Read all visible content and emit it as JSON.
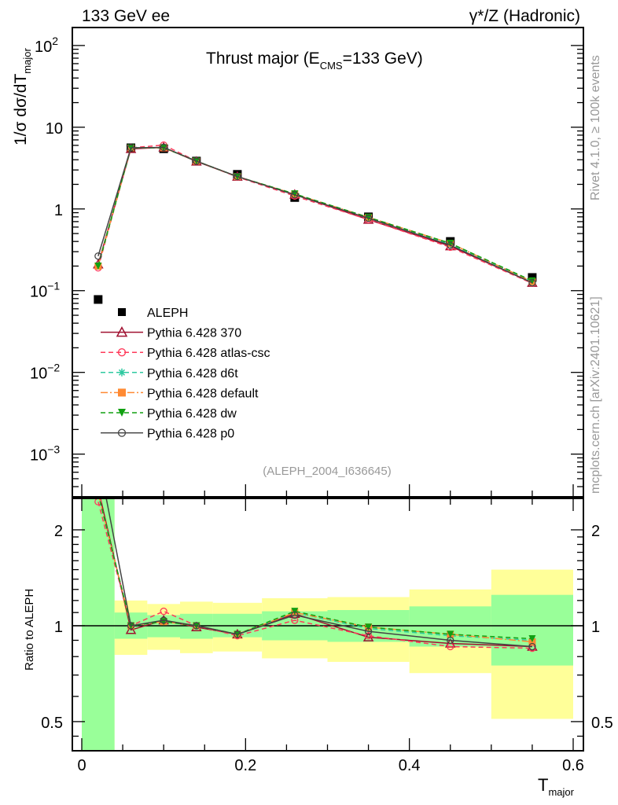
{
  "header": {
    "left": "133 GeV ee",
    "right": "γ*/Z (Hadronic)"
  },
  "side_text": {
    "rivet": "Rivet 4.1.0, ≥ 100k events",
    "mcplots": "mcplots.cern.ch [arXiv:2401.10621]"
  },
  "chart_data": [
    {
      "type": "line",
      "title_main": "Thrust major (E",
      "title_sub": "CMS",
      "title_end": "=133 GeV)",
      "ylabel_main": "1/σ  dσ/dT",
      "ylabel_sub": "major",
      "yscale": "log",
      "ylim": [
        0.0003,
        166
      ],
      "xlim": [
        -0.02,
        0.62
      ],
      "yticks": [
        {
          "v": 0.001,
          "b": "10",
          "e": "−3"
        },
        {
          "v": 0.01,
          "b": "10",
          "e": "−2"
        },
        {
          "v": 0.1,
          "b": "10",
          "e": "−1"
        },
        {
          "v": 1,
          "b": "1",
          "e": ""
        },
        {
          "v": 10,
          "b": "10",
          "e": ""
        },
        {
          "v": 100,
          "b": "10",
          "e": "2"
        }
      ],
      "annotation": "(ALEPH_2004_I636645)",
      "legend_placement": "center-left",
      "x": [
        0.02,
        0.06,
        0.1,
        0.14,
        0.19,
        0.26,
        0.35,
        0.45,
        0.55
      ],
      "bin_edges": [
        0,
        0.04,
        0.08,
        0.12,
        0.16,
        0.22,
        0.3,
        0.4,
        0.5,
        0.6
      ],
      "series": [
        {
          "name": "ALEPH",
          "color": "#000000",
          "marker": "square",
          "line": "none",
          "values": [
            0.078,
            5.6,
            5.45,
            3.85,
            2.65,
            1.38,
            0.8,
            0.4,
            0.145
          ]
        },
        {
          "name": "Pythia 6.428 370",
          "color": "#a01030",
          "marker": "triangle-open",
          "line": "solid",
          "values": [
            0.21,
            5.43,
            5.67,
            3.81,
            2.49,
            1.5,
            0.74,
            0.35,
            0.125
          ]
        },
        {
          "name": "Pythia 6.428 atlas-csc",
          "color": "#ff3a5a",
          "marker": "circle-open",
          "line": "dashed",
          "values": [
            0.19,
            5.6,
            6.05,
            3.85,
            2.46,
            1.44,
            0.74,
            0.34,
            0.123
          ]
        },
        {
          "name": "Pythia 6.428 d6t",
          "color": "#2ec9a0",
          "marker": "asterisk",
          "line": "dashed",
          "values": [
            0.2,
            5.6,
            5.61,
            3.85,
            2.49,
            1.52,
            0.78,
            0.37,
            0.13
          ]
        },
        {
          "name": "Pythia 6.428 default",
          "color": "#ff8a33",
          "marker": "square",
          "line": "dashdot",
          "values": [
            0.2,
            5.6,
            5.61,
            3.85,
            2.49,
            1.52,
            0.79,
            0.38,
            0.129
          ]
        },
        {
          "name": "Pythia 6.428 dw",
          "color": "#11a011",
          "marker": "triangle-down",
          "line": "dashed",
          "values": [
            0.2,
            5.6,
            5.61,
            3.85,
            2.49,
            1.53,
            0.79,
            0.38,
            0.132
          ]
        },
        {
          "name": "Pythia 6.428 p0",
          "color": "#444444",
          "marker": "circle-open",
          "line": "solid",
          "values": [
            0.265,
            5.6,
            5.67,
            3.85,
            2.49,
            1.49,
            0.77,
            0.36,
            0.125
          ]
        }
      ]
    },
    {
      "type": "line",
      "ylabel": "Ratio to ALEPH",
      "xlabel_main": "T",
      "xlabel_sub": "major",
      "yscale": "log",
      "ylim": [
        0.405,
        2.51
      ],
      "yticks": [
        {
          "v": 0.5,
          "l": "0.5"
        },
        {
          "v": 1,
          "l": "1"
        },
        {
          "v": 2,
          "l": "2"
        }
      ],
      "xticks": [
        {
          "v": 0,
          "l": "0"
        },
        {
          "v": 0.2,
          "l": "0.2"
        },
        {
          "v": 0.4,
          "l": "0.4"
        },
        {
          "v": 0.6,
          "l": "0.6"
        }
      ],
      "band_yellow": [
        [
          0.3,
          3
        ],
        [
          0.81,
          1.2
        ],
        [
          0.84,
          1.17
        ],
        [
          0.82,
          1.19
        ],
        [
          0.83,
          1.18
        ],
        [
          0.79,
          1.22
        ],
        [
          0.77,
          1.23
        ],
        [
          0.71,
          1.3
        ],
        [
          0.51,
          1.5
        ]
      ],
      "band_green": [
        [
          0.3,
          2.9
        ],
        [
          0.91,
          1.1
        ],
        [
          0.92,
          1.08
        ],
        [
          0.91,
          1.09
        ],
        [
          0.92,
          1.09
        ],
        [
          0.9,
          1.11
        ],
        [
          0.89,
          1.12
        ],
        [
          0.86,
          1.15
        ],
        [
          0.75,
          1.25
        ]
      ],
      "band_colors": {
        "yellow": "#ffff99",
        "green": "#99ff99"
      },
      "ratios": [
        [
          2.7,
          0.97,
          1.04,
          0.99,
          0.94,
          1.09,
          0.92,
          0.88,
          0.86
        ],
        [
          2.45,
          1.0,
          1.11,
          1.0,
          0.93,
          1.04,
          0.93,
          0.86,
          0.85
        ],
        [
          2.6,
          1.0,
          1.03,
          1.0,
          0.94,
          1.1,
          0.98,
          0.93,
          0.9
        ],
        [
          2.6,
          1.0,
          1.03,
          1.0,
          0.94,
          1.1,
          0.99,
          0.94,
          0.89
        ],
        [
          2.6,
          1.0,
          1.03,
          1.0,
          0.94,
          1.11,
          0.99,
          0.94,
          0.91
        ],
        [
          3.4,
          1.0,
          1.04,
          1.0,
          0.94,
          1.08,
          0.96,
          0.9,
          0.86
        ]
      ]
    }
  ]
}
